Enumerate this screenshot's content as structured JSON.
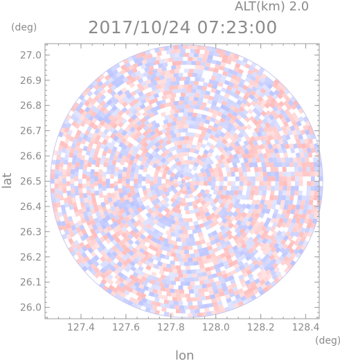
{
  "header": {
    "altitude_label": "ALT(km)",
    "altitude_value": "2.0",
    "timestamp": "2017/10/24 07:23:00"
  },
  "colors": {
    "positive": "#ff7a7a",
    "negative": "#7a8cff",
    "axis": "#9a9a9a",
    "text": "#8a8a8a"
  },
  "chart_data": {
    "type": "heatmap",
    "description_kind": "polar radar sweep rendered on lon/lat grid",
    "xlabel": "lon",
    "ylabel": "lat",
    "xunit": "(deg)",
    "yunit": "(deg)",
    "xlim": [
      127.24,
      128.46
    ],
    "ylim": [
      25.955,
      27.045
    ],
    "x_ticks": [
      127.4,
      127.6,
      127.8,
      128.0,
      128.2,
      128.4
    ],
    "x_tick_labels": [
      "127.4",
      "127.6",
      "127.8",
      "128.0",
      "128.2",
      "128.4"
    ],
    "y_ticks": [
      26.0,
      26.1,
      26.2,
      26.3,
      26.4,
      26.5,
      26.6,
      26.7,
      26.8,
      26.9,
      27.0
    ],
    "y_tick_labels": [
      "26.0",
      "26.1",
      "26.2",
      "26.3",
      "26.4",
      "26.5",
      "26.6",
      "26.7",
      "26.8",
      "26.9",
      "27.0"
    ],
    "center": {
      "lon": 127.87,
      "lat": 26.5
    },
    "radius_lat_deg": 0.54,
    "color_scale": {
      "negative": "blue",
      "zero": "white",
      "positive": "red"
    },
    "grid": false
  }
}
